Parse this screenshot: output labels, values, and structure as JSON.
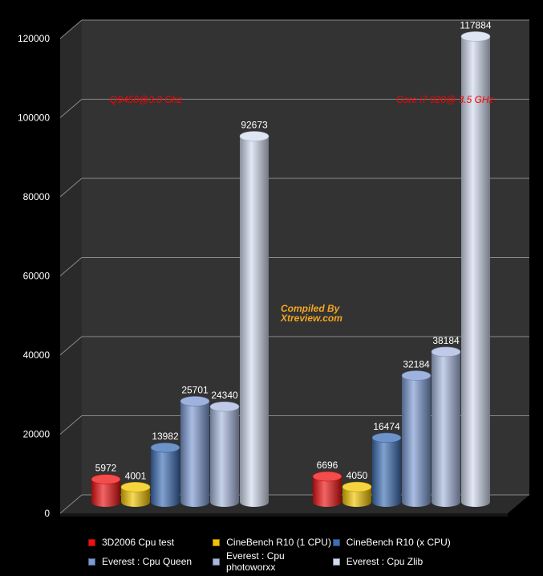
{
  "chart_data": {
    "type": "bar",
    "categories": [
      "",
      ""
    ],
    "ylim": [
      0,
      120000
    ],
    "yticks": [
      0,
      20000,
      40000,
      60000,
      80000,
      100000,
      120000
    ],
    "grid": true,
    "legend_position": "bottom",
    "series": [
      {
        "name": "3D2006 Cpu test",
        "color": "#ee1111",
        "values": [
          5972,
          6696
        ]
      },
      {
        "name": "CineBench R10 (1 CPU)",
        "color": "#f2c500",
        "values": [
          4001,
          4050
        ]
      },
      {
        "name": "CineBench R10 (x CPU)",
        "color": "#3d6fb6",
        "values": [
          13982,
          16474
        ]
      },
      {
        "name": "Everest : Cpu Queen",
        "color": "#7c9ad3",
        "values": [
          25701,
          32184
        ]
      },
      {
        "name": "Everest : Cpu photoworxx",
        "color": "#a8b8df",
        "values": [
          24340,
          38184
        ]
      },
      {
        "name": "Everest : Cpu  Zlib",
        "color": "#d3dcef",
        "values": [
          92673,
          117884
        ]
      }
    ],
    "annotations": [
      "Q9450@3.0 Ghz",
      "Core i7 920@ 3.5 GHz"
    ],
    "watermark": [
      "Compiled By",
      "Xtreview.com"
    ]
  }
}
